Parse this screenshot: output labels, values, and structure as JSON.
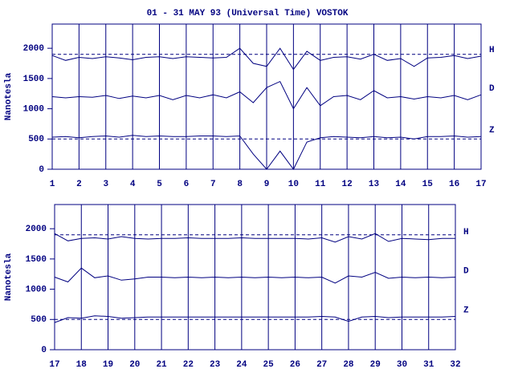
{
  "chart_data": [
    {
      "type": "line",
      "title": "01 - 31 MAY 93 (Universal Time) VOSTOK",
      "ylabel": "Nanotesla",
      "x": [
        1,
        1.5,
        2,
        2.5,
        3,
        3.5,
        4,
        4.5,
        5,
        5.5,
        6,
        6.5,
        7,
        7.5,
        8,
        8.5,
        9,
        9.5,
        10,
        10.5,
        11,
        11.5,
        12,
        12.5,
        13,
        13.5,
        14,
        14.5,
        15,
        15.5,
        16,
        16.5,
        17
      ],
      "xlim": [
        1,
        17
      ],
      "xticks": [
        1,
        2,
        3,
        4,
        5,
        6,
        7,
        8,
        9,
        10,
        11,
        12,
        13,
        14,
        15,
        16,
        17
      ],
      "ylim": [
        0,
        2400
      ],
      "yticks": [
        0,
        500,
        1000,
        1500,
        2000
      ],
      "reference_lines": [
        1900,
        500
      ],
      "grid": true,
      "series": [
        {
          "name": "H",
          "color": "#000080",
          "values": [
            1880,
            1800,
            1850,
            1830,
            1860,
            1840,
            1810,
            1850,
            1860,
            1830,
            1860,
            1850,
            1840,
            1850,
            2000,
            1750,
            1700,
            2000,
            1650,
            1950,
            1800,
            1850,
            1860,
            1820,
            1900,
            1800,
            1830,
            1700,
            1840,
            1850,
            1880,
            1830,
            1870
          ]
        },
        {
          "name": "D",
          "color": "#000080",
          "values": [
            1200,
            1180,
            1200,
            1190,
            1220,
            1170,
            1210,
            1180,
            1220,
            1150,
            1220,
            1180,
            1230,
            1180,
            1280,
            1100,
            1350,
            1450,
            1000,
            1350,
            1050,
            1200,
            1220,
            1150,
            1300,
            1180,
            1200,
            1160,
            1200,
            1180,
            1220,
            1150,
            1230
          ]
        },
        {
          "name": "Z",
          "color": "#000080",
          "values": [
            530,
            540,
            520,
            540,
            550,
            530,
            560,
            540,
            550,
            540,
            540,
            550,
            550,
            540,
            550,
            250,
            0,
            300,
            0,
            450,
            520,
            540,
            530,
            520,
            540,
            520,
            530,
            500,
            540,
            540,
            550,
            530,
            540
          ]
        }
      ]
    },
    {
      "type": "line",
      "ylabel": "Nanotesla",
      "x": [
        17,
        17.5,
        18,
        18.5,
        19,
        19.5,
        20,
        20.5,
        21,
        21.5,
        22,
        22.5,
        23,
        23.5,
        24,
        24.5,
        25,
        25.5,
        26,
        26.5,
        27,
        27.5,
        28,
        28.5,
        29,
        29.5,
        30,
        30.5,
        31,
        31.5,
        32
      ],
      "xlim": [
        17,
        32
      ],
      "xticks": [
        17,
        18,
        19,
        20,
        21,
        22,
        23,
        24,
        25,
        26,
        27,
        28,
        29,
        30,
        31,
        32
      ],
      "ylim": [
        0,
        2400
      ],
      "yticks": [
        0,
        500,
        1000,
        1500,
        2000
      ],
      "reference_lines": [
        1900,
        500
      ],
      "grid": true,
      "series": [
        {
          "name": "H",
          "color": "#000080",
          "values": [
            1920,
            1800,
            1840,
            1850,
            1830,
            1870,
            1840,
            1830,
            1840,
            1840,
            1850,
            1840,
            1840,
            1840,
            1850,
            1840,
            1840,
            1840,
            1840,
            1830,
            1850,
            1780,
            1870,
            1830,
            1920,
            1790,
            1840,
            1830,
            1820,
            1840,
            1840
          ]
        },
        {
          "name": "D",
          "color": "#000080",
          "values": [
            1200,
            1120,
            1350,
            1190,
            1220,
            1150,
            1170,
            1200,
            1200,
            1190,
            1200,
            1190,
            1200,
            1190,
            1200,
            1190,
            1200,
            1190,
            1200,
            1190,
            1200,
            1100,
            1220,
            1200,
            1280,
            1180,
            1200,
            1190,
            1200,
            1190,
            1200
          ]
        },
        {
          "name": "Z",
          "color": "#000080",
          "values": [
            450,
            530,
            520,
            560,
            550,
            520,
            530,
            540,
            540,
            540,
            540,
            540,
            540,
            540,
            540,
            540,
            540,
            540,
            540,
            540,
            550,
            540,
            470,
            540,
            550,
            530,
            540,
            540,
            540,
            540,
            550
          ]
        }
      ]
    }
  ]
}
